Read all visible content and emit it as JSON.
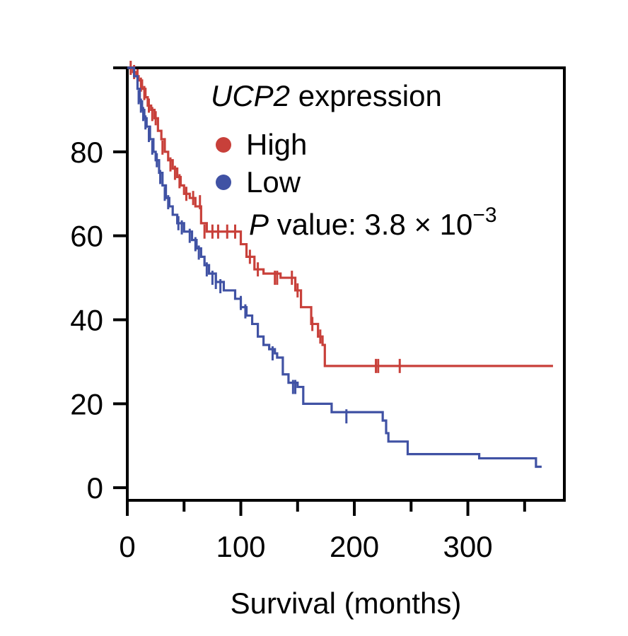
{
  "chart_data": {
    "type": "line",
    "subtype": "kaplan-meier",
    "xlabel": "Survival (months)",
    "ylabel": "",
    "xlim": [
      0,
      385
    ],
    "ylim": [
      -3,
      100
    ],
    "xticks": [
      0,
      100,
      200,
      300
    ],
    "xtick_labels": [
      "0",
      "100",
      "200",
      "300"
    ],
    "yticks": [
      0,
      20,
      40,
      60,
      80,
      100
    ],
    "ytick_labels": [
      "0",
      "20",
      "40",
      "60",
      "80",
      ""
    ],
    "grid": false,
    "legend": {
      "title_italic": "UCP2",
      "title_rest": " expression",
      "entries": [
        "High",
        "Low"
      ],
      "placement": "top-right",
      "p_label_italic": "P",
      "p_label_rest": " value: 3.8 × 10",
      "p_exponent": "−3"
    },
    "series": [
      {
        "name": "High",
        "color": "#c8403a",
        "steps": [
          [
            0,
            100
          ],
          [
            5,
            99
          ],
          [
            8,
            98
          ],
          [
            10,
            97
          ],
          [
            13,
            95
          ],
          [
            16,
            93
          ],
          [
            18,
            91
          ],
          [
            21,
            90
          ],
          [
            24,
            88
          ],
          [
            27,
            85
          ],
          [
            30,
            83
          ],
          [
            33,
            80
          ],
          [
            36,
            78
          ],
          [
            40,
            76
          ],
          [
            44,
            74
          ],
          [
            47,
            72
          ],
          [
            50,
            70
          ],
          [
            55,
            69
          ],
          [
            60,
            67
          ],
          [
            65,
            63
          ],
          [
            70,
            61
          ],
          [
            100,
            58
          ],
          [
            105,
            55
          ],
          [
            112,
            52
          ],
          [
            120,
            51
          ],
          [
            135,
            50
          ],
          [
            148,
            47
          ],
          [
            153,
            43
          ],
          [
            162,
            39
          ],
          [
            168,
            36
          ],
          [
            172,
            34
          ],
          [
            174,
            29
          ],
          [
            375,
            29
          ]
        ],
        "censored": [
          [
            3,
            100
          ],
          [
            6,
            99
          ],
          [
            9,
            98
          ],
          [
            12,
            96
          ],
          [
            15,
            94
          ],
          [
            19,
            91
          ],
          [
            22,
            89
          ],
          [
            25,
            88
          ],
          [
            31,
            81
          ],
          [
            38,
            77
          ],
          [
            42,
            75
          ],
          [
            46,
            73
          ],
          [
            52,
            70
          ],
          [
            58,
            69
          ],
          [
            64,
            68
          ],
          [
            68,
            61
          ],
          [
            75,
            61
          ],
          [
            80,
            61
          ],
          [
            88,
            61
          ],
          [
            95,
            61
          ],
          [
            108,
            55
          ],
          [
            115,
            52
          ],
          [
            130,
            50
          ],
          [
            132,
            50
          ],
          [
            145,
            50
          ],
          [
            150,
            47
          ],
          [
            163,
            39
          ],
          [
            170,
            36
          ],
          [
            219,
            29
          ],
          [
            221,
            29
          ],
          [
            240,
            29
          ]
        ]
      },
      {
        "name": "Low",
        "color": "#4052a4",
        "steps": [
          [
            0,
            100
          ],
          [
            6,
            98
          ],
          [
            9,
            95
          ],
          [
            11,
            92
          ],
          [
            13,
            90
          ],
          [
            15,
            88
          ],
          [
            17,
            86
          ],
          [
            20,
            83
          ],
          [
            23,
            80
          ],
          [
            25,
            78
          ],
          [
            28,
            75
          ],
          [
            31,
            72
          ],
          [
            34,
            69
          ],
          [
            37,
            67
          ],
          [
            40,
            65
          ],
          [
            44,
            63
          ],
          [
            50,
            61
          ],
          [
            57,
            59
          ],
          [
            61,
            57
          ],
          [
            65,
            55
          ],
          [
            68,
            53
          ],
          [
            72,
            51
          ],
          [
            78,
            49
          ],
          [
            85,
            47
          ],
          [
            95,
            45
          ],
          [
            100,
            43
          ],
          [
            105,
            41
          ],
          [
            110,
            39
          ],
          [
            115,
            36
          ],
          [
            120,
            34
          ],
          [
            125,
            33
          ],
          [
            130,
            32
          ],
          [
            132,
            31
          ],
          [
            137,
            27
          ],
          [
            142,
            25
          ],
          [
            150,
            24
          ],
          [
            155,
            20
          ],
          [
            180,
            18
          ],
          [
            225,
            16
          ],
          [
            228,
            13
          ],
          [
            230,
            11
          ],
          [
            247,
            8
          ],
          [
            310,
            7
          ],
          [
            360,
            5
          ],
          [
            365,
            5
          ]
        ],
        "censored": [
          [
            10,
            93
          ],
          [
            12,
            91
          ],
          [
            14,
            89
          ],
          [
            16,
            87
          ],
          [
            19,
            84
          ],
          [
            22,
            81
          ],
          [
            26,
            78
          ],
          [
            29,
            74
          ],
          [
            33,
            70
          ],
          [
            36,
            68
          ],
          [
            45,
            63
          ],
          [
            48,
            62
          ],
          [
            55,
            60
          ],
          [
            60,
            58
          ],
          [
            63,
            56
          ],
          [
            70,
            52
          ],
          [
            75,
            50
          ],
          [
            78,
            49
          ],
          [
            82,
            48
          ],
          [
            100,
            44
          ],
          [
            104,
            42
          ],
          [
            128,
            32
          ],
          [
            146,
            24
          ],
          [
            148,
            24
          ],
          [
            193,
            17
          ]
        ]
      }
    ]
  }
}
